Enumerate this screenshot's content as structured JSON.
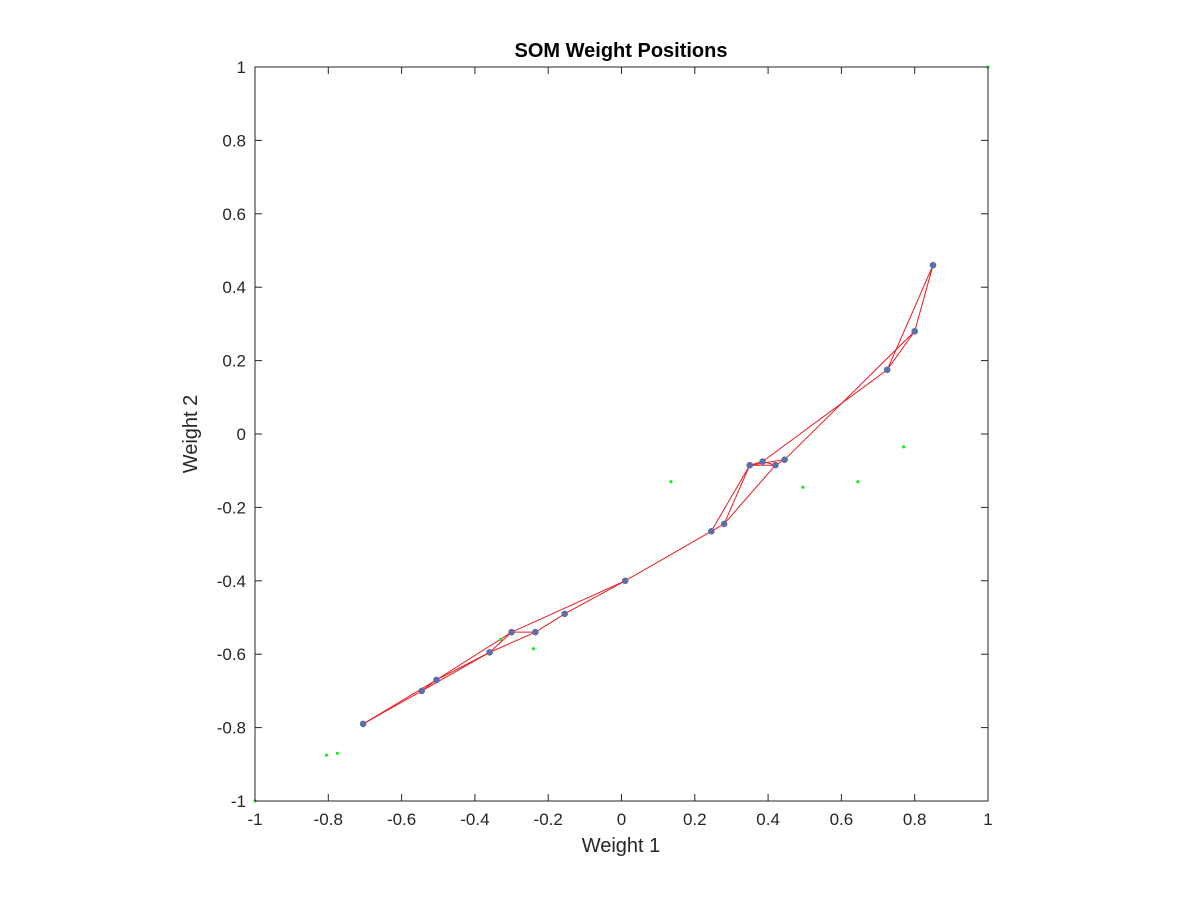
{
  "chart_data": {
    "type": "scatter",
    "title": "SOM Weight Positions",
    "xlabel": "Weight 1",
    "ylabel": "Weight 2",
    "xlim": [
      -1,
      1
    ],
    "ylim": [
      -1,
      1
    ],
    "xticks": [
      -1,
      -0.8,
      -0.6,
      -0.4,
      -0.2,
      0,
      0.2,
      0.4,
      0.6,
      0.8,
      1
    ],
    "yticks": [
      -1,
      -0.8,
      -0.6,
      -0.4,
      -0.2,
      0,
      0.2,
      0.4,
      0.6,
      0.8,
      1
    ],
    "xtick_labels": [
      "-1",
      "-0.8",
      "-0.6",
      "-0.4",
      "-0.2",
      "0",
      "0.2",
      "0.4",
      "0.6",
      "0.8",
      "1"
    ],
    "ytick_labels": [
      "-1",
      "-0.8",
      "-0.6",
      "-0.4",
      "-0.2",
      "0",
      "0.2",
      "0.4",
      "0.6",
      "0.8",
      "1"
    ],
    "grid": false,
    "colors": {
      "neurons": "#5b6ea8",
      "links": "#e8191f",
      "inputs": "#1ee81e",
      "axes": "#262626"
    },
    "neurons": [
      {
        "x": -0.705,
        "y": -0.79
      },
      {
        "x": -0.545,
        "y": -0.7
      },
      {
        "x": -0.505,
        "y": -0.67
      },
      {
        "x": -0.36,
        "y": -0.595
      },
      {
        "x": -0.3,
        "y": -0.54
      },
      {
        "x": -0.235,
        "y": -0.54
      },
      {
        "x": -0.155,
        "y": -0.49
      },
      {
        "x": 0.01,
        "y": -0.4
      },
      {
        "x": 0.245,
        "y": -0.265
      },
      {
        "x": 0.28,
        "y": -0.245
      },
      {
        "x": 0.35,
        "y": -0.085
      },
      {
        "x": 0.385,
        "y": -0.075
      },
      {
        "x": 0.42,
        "y": -0.085
      },
      {
        "x": 0.445,
        "y": -0.07
      },
      {
        "x": 0.725,
        "y": 0.175
      },
      {
        "x": 0.8,
        "y": 0.28
      },
      {
        "x": 0.85,
        "y": 0.46
      }
    ],
    "links": [
      [
        0,
        1
      ],
      [
        0,
        2
      ],
      [
        1,
        2
      ],
      [
        1,
        3
      ],
      [
        2,
        3
      ],
      [
        2,
        4
      ],
      [
        3,
        4
      ],
      [
        3,
        5
      ],
      [
        4,
        5
      ],
      [
        4,
        7
      ],
      [
        5,
        6
      ],
      [
        6,
        7
      ],
      [
        7,
        8
      ],
      [
        8,
        9
      ],
      [
        8,
        10
      ],
      [
        9,
        10
      ],
      [
        9,
        12
      ],
      [
        10,
        11
      ],
      [
        10,
        12
      ],
      [
        11,
        12
      ],
      [
        10,
        13
      ],
      [
        12,
        13
      ],
      [
        11,
        14
      ],
      [
        13,
        15
      ],
      [
        14,
        15
      ],
      [
        14,
        16
      ],
      [
        15,
        16
      ]
    ],
    "inputs": [
      {
        "x": -1.0,
        "y": -1.0
      },
      {
        "x": 1.0,
        "y": 1.0
      },
      {
        "x": -0.805,
        "y": -0.875
      },
      {
        "x": -0.775,
        "y": -0.87
      },
      {
        "x": -0.33,
        "y": -0.56
      },
      {
        "x": -0.24,
        "y": -0.585
      },
      {
        "x": 0.135,
        "y": -0.13
      },
      {
        "x": 0.495,
        "y": -0.145
      },
      {
        "x": 0.645,
        "y": -0.13
      },
      {
        "x": 0.77,
        "y": -0.035
      }
    ]
  }
}
